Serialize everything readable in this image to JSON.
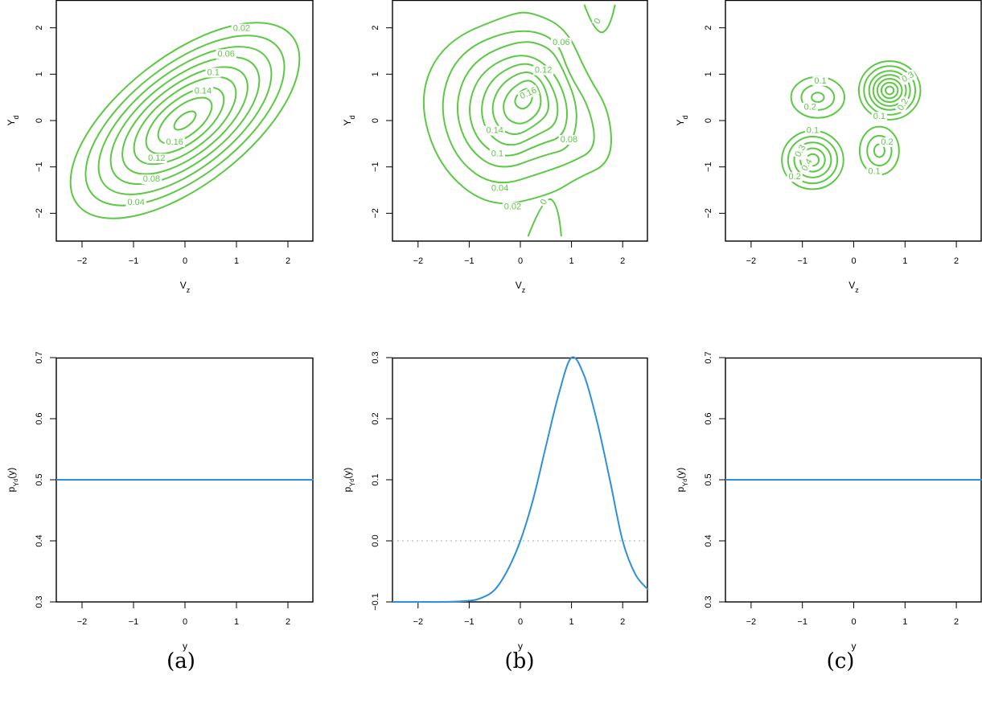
{
  "colors": {
    "contour": "#5cc944",
    "density": "#2f8fd8",
    "zeroline": "#b9b9b9"
  },
  "panel_labels": [
    "(a)",
    "(b)",
    "(c)"
  ],
  "chart_data": [
    {
      "type": "contour",
      "xlabel": "V_z",
      "ylabel": "Y_d",
      "xlim": [
        -2.5,
        2.5
      ],
      "ylim": [
        -2.6,
        2.6
      ],
      "xticks": [
        "-2",
        "-1",
        "0",
        "1",
        "2"
      ],
      "yticks": [
        "-2",
        "-1",
        "0",
        "1",
        "2"
      ],
      "contour_labels": [
        "0.02",
        "0.04",
        "0.06",
        "0.08",
        "0.1",
        "0.12",
        "0.14",
        "0.16"
      ]
    },
    {
      "type": "contour",
      "xlabel": "V_z",
      "ylabel": "Y_d",
      "xlim": [
        -2.5,
        2.5
      ],
      "ylim": [
        -2.6,
        2.6
      ],
      "xticks": [
        "-2",
        "-1",
        "0",
        "1",
        "2"
      ],
      "yticks": [
        "-2",
        "-1",
        "0",
        "1",
        "2"
      ],
      "contour_labels": [
        "0",
        "0.02",
        "0.04",
        "0.06",
        "0.08",
        "0.1",
        "0.12",
        "0.14",
        "0.16",
        "0"
      ]
    },
    {
      "type": "contour",
      "xlabel": "V_z",
      "ylabel": "Y_d",
      "xlim": [
        -2.5,
        2.5
      ],
      "ylim": [
        -2.6,
        2.6
      ],
      "xticks": [
        "-2",
        "-1",
        "0",
        "1",
        "2"
      ],
      "yticks": [
        "-2",
        "-1",
        "0",
        "1",
        "2"
      ],
      "contour_labels": [
        "0.1",
        "0.2",
        "0.1",
        "0.2",
        "0.3",
        "0.4",
        "0.2",
        "0.3",
        "0.1",
        "0.2",
        "0.1"
      ],
      "modes": [
        {
          "x": -0.7,
          "y": 0.5
        },
        {
          "x": 0.7,
          "y": 0.65
        },
        {
          "x": -0.8,
          "y": -0.85
        },
        {
          "x": 0.5,
          "y": -0.65
        }
      ]
    },
    {
      "type": "line",
      "xlabel": "y",
      "ylabel": "p_Y_d(y)",
      "xlim": [
        -2.5,
        2.5
      ],
      "ylim": [
        0.3,
        0.7
      ],
      "xticks": [
        "-2",
        "-1",
        "0",
        "1",
        "2"
      ],
      "yticks": [
        "0.3",
        "0.4",
        "0.5",
        "0.6",
        "0.7"
      ],
      "series": [
        {
          "x": [
            -2.5,
            2.5
          ],
          "y": [
            0.5,
            0.5
          ]
        }
      ]
    },
    {
      "type": "line",
      "xlabel": "y",
      "ylabel": "p_Y_d(y)",
      "xlim": [
        -2.5,
        2.5
      ],
      "ylim": [
        -0.1,
        0.3
      ],
      "xticks": [
        "-2",
        "-1",
        "0",
        "1",
        "2"
      ],
      "yticks": [
        "-0.1",
        "0.0",
        "0.1",
        "0.2",
        "0.3"
      ],
      "series": [
        {
          "x": [
            -2.5,
            -2.0,
            -1.5,
            -1.0,
            -0.75,
            -0.5,
            -0.25,
            0.0,
            0.25,
            0.5,
            0.75,
            1.0,
            1.25,
            1.5,
            1.75,
            2.0,
            2.25,
            2.5
          ],
          "y": [
            -0.1,
            -0.1,
            -0.1,
            -0.098,
            -0.093,
            -0.08,
            -0.048,
            0.0,
            0.068,
            0.155,
            0.24,
            0.3,
            0.27,
            0.195,
            0.1,
            0.0,
            -0.055,
            -0.08
          ]
        }
      ],
      "reference_line": {
        "y": 0.0,
        "style": "dotted"
      }
    },
    {
      "type": "line",
      "xlabel": "y",
      "ylabel": "p_Y_d(y)",
      "xlim": [
        -2.5,
        2.5
      ],
      "ylim": [
        0.3,
        0.7
      ],
      "xticks": [
        "-2",
        "-1",
        "0",
        "1",
        "2"
      ],
      "yticks": [
        "0.3",
        "0.4",
        "0.5",
        "0.6",
        "0.7"
      ],
      "series": [
        {
          "x": [
            -2.5,
            2.5
          ],
          "y": [
            0.5,
            0.5
          ]
        }
      ]
    }
  ]
}
